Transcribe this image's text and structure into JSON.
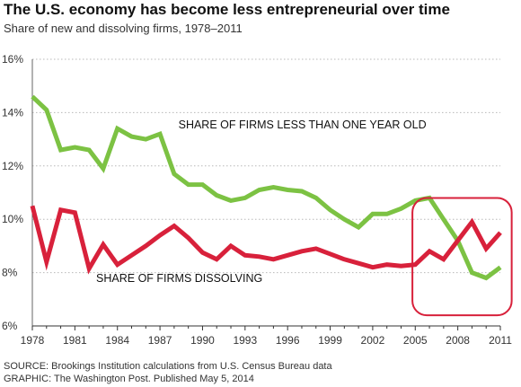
{
  "header": {
    "title": "The U.S. economy has become less entrepreneurial over time",
    "subtitle": "Share of new and dissolving firms, 1978–2011"
  },
  "footer": {
    "source": "SOURCE: Brookings Institution calculations from U.S. Census Bureau data",
    "graphic": "GRAPHIC: The Washington Post. Published May 5, 2014"
  },
  "colors": {
    "new_firms": "#7cc243",
    "dissolving": "#d8213b",
    "highlight": "#d8213b",
    "grid": "#b8b8b8"
  },
  "chart_data": {
    "type": "line",
    "title": "The U.S. economy has become less entrepreneurial over time",
    "subtitle": "Share of new and dissolving firms, 1978–2011",
    "xlabel": "",
    "ylabel": "",
    "xlim": [
      1978,
      2011
    ],
    "ylim": [
      6,
      16
    ],
    "grid": "horizontal dotted",
    "x_ticks": [
      1978,
      1981,
      1984,
      1987,
      1990,
      1993,
      1996,
      1999,
      2002,
      2005,
      2008,
      2011
    ],
    "x_tick_labels": [
      "1978",
      "1981",
      "1984",
      "1987",
      "1990",
      "1993",
      "1996",
      "1999",
      "2002",
      "2005",
      "2008",
      "2011"
    ],
    "y_ticks": [
      6,
      8,
      10,
      12,
      14,
      16
    ],
    "y_tick_labels": [
      "6%",
      "8%",
      "10%",
      "12%",
      "14%",
      "16%"
    ],
    "x": [
      1978,
      1979,
      1980,
      1981,
      1982,
      1983,
      1984,
      1985,
      1986,
      1987,
      1988,
      1989,
      1990,
      1991,
      1992,
      1993,
      1994,
      1995,
      1996,
      1997,
      1998,
      1999,
      2000,
      2001,
      2002,
      2003,
      2004,
      2005,
      2006,
      2007,
      2008,
      2009,
      2010,
      2011
    ],
    "series": [
      {
        "name": "SHARE OF FIRMS LESS THAN ONE YEAR OLD",
        "values": [
          14.6,
          14.1,
          12.6,
          12.7,
          12.6,
          11.9,
          13.4,
          13.1,
          13.0,
          13.2,
          11.7,
          11.3,
          11.3,
          10.9,
          10.7,
          10.8,
          11.1,
          11.2,
          11.1,
          11.05,
          10.8,
          10.35,
          10.0,
          9.7,
          10.2,
          10.2,
          10.4,
          10.7,
          10.8,
          10.0,
          9.2,
          8.0,
          7.8,
          8.2
        ]
      },
      {
        "name": "SHARE OF FIRMS DISSOLVING",
        "values": [
          10.5,
          8.4,
          10.35,
          10.25,
          8.15,
          9.05,
          8.3,
          8.65,
          9.0,
          9.4,
          9.75,
          9.3,
          8.75,
          8.5,
          9.0,
          8.65,
          8.6,
          8.5,
          8.65,
          8.8,
          8.9,
          8.7,
          8.5,
          8.35,
          8.2,
          8.3,
          8.25,
          8.3,
          8.8,
          8.5,
          9.2,
          9.9,
          8.9,
          9.5
        ]
      }
    ],
    "annotations": [
      {
        "text": "SHARE OF FIRMS LESS THAN ONE YEAR OLD",
        "x": 1988.3,
        "y": 13.4
      },
      {
        "text": "SHARE OF FIRMS DISSOLVING",
        "x": 1982.5,
        "y": 7.65
      }
    ],
    "highlight_range": {
      "x": [
        2004.8,
        2011.8
      ],
      "y": [
        6.4,
        10.8
      ]
    }
  }
}
